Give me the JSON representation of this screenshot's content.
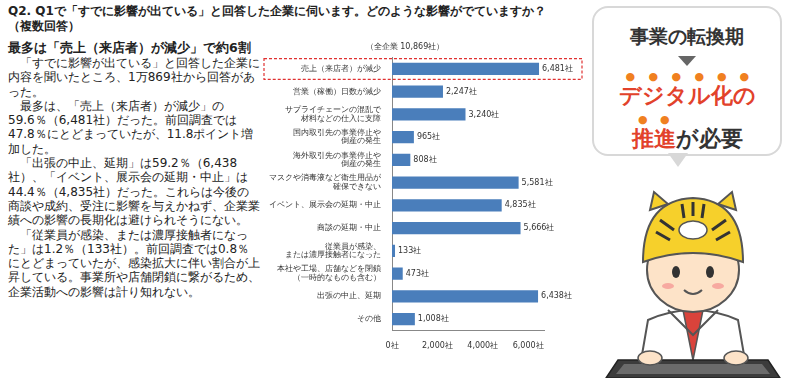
{
  "heading": "Q2. Q1で「すでに影響が出ている」と回答した企業に伺います。どのような影響がでていますか？（複数回答）",
  "article": {
    "title": "最多は「売上（来店者）が減少」で約6割",
    "paragraphs": [
      "「すでに影響が出ている」と回答した企業に内容を聞いたところ、1万869社から回答があった。",
      "最多は、「売上（来店者）が減少」の59.6％（6,481社）だった。前回調査では47.8％にとどまっていたが、11.8ポイント増加した。",
      "「出張の中止、延期」は59.2％（6,438社）、「イベント、展示会の延期・中止」は44.4％（4,835社）だった。これらは今後の商談や成約、受注に影響を与えかねず、企業業績への影響の長期化は避けられそうにない。",
      "「従業員が感染、または濃厚接触者になった」は1.2％（133社）。前回調査では0.8％にとどまっていたが、感染拡大に伴い割合が上昇している。事業所や店舗閉鎖に繋がるため、企業活動への影響は計り知れない。"
    ]
  },
  "callout": {
    "title": "事業の転換期",
    "message": [
      "デジタル化の",
      "推進",
      "が必要"
    ]
  },
  "chart_data": {
    "type": "bar",
    "orientation": "horizontal",
    "title": "（全企業 10,869社）",
    "categories": [
      "売上（来店者）が減少",
      "営業（稼働）日数が減少",
      "サプライチェーンの混乱で\n材料などの仕入に支障",
      "国内取引先の事業停止や\n倒産の発生",
      "海外取引先の事業停止や\n倒産の発生",
      "マスクや消毒液など衛生用品が\n確保できない",
      "イベント、展示会の延期・中止",
      "商談の延期・中止",
      "従業員が感染、\nまたは濃厚接触者になった",
      "本社や工場、店舗などを閉鎖\n（一時的なものも含む）",
      "出張の中止、延期",
      "その他"
    ],
    "values": [
      6481,
      2247,
      3240,
      965,
      808,
      5581,
      4835,
      5666,
      133,
      473,
      6438,
      1008
    ],
    "value_labels": [
      "6,481社",
      "2,247社",
      "3,240社",
      "965社",
      "808社",
      "5,581社",
      "4,835社",
      "5,666社",
      "133社",
      "473社",
      "6,438社",
      "1,008社"
    ],
    "data_labels": true,
    "color": "#4a7ebb",
    "xlim": [
      0,
      6700
    ],
    "xticks": [
      {
        "value": 0,
        "label": "0社"
      },
      {
        "value": 2000,
        "label": "2,000社"
      },
      {
        "value": 4000,
        "label": "4,000社"
      },
      {
        "value": 6000,
        "label": "6,000社"
      }
    ],
    "grid": false
  }
}
